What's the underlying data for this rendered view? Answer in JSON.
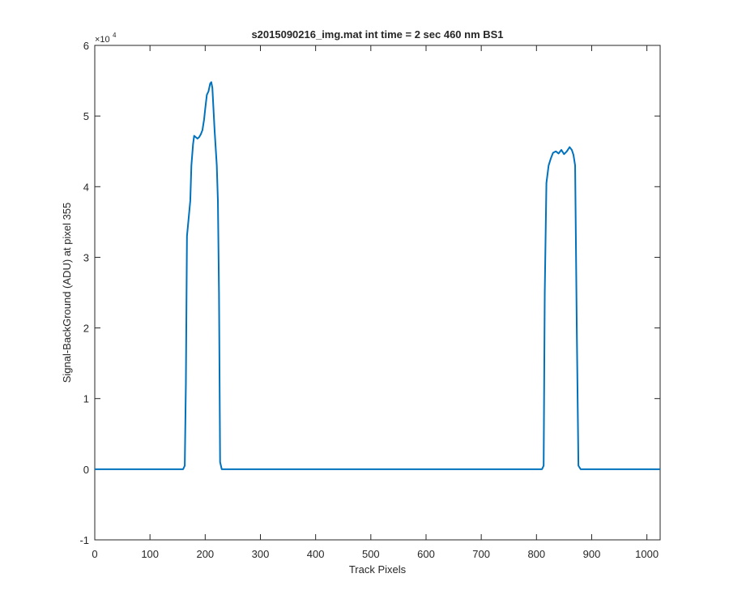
{
  "chart_data": {
    "type": "line",
    "title": "s2015090216_img.mat int time = 2 sec  460 nm BS1",
    "xlabel": "Track Pixels",
    "ylabel": "Signal-BackGround (ADU) at pixel 355",
    "y_exponent_label": "×10",
    "y_exponent": "4",
    "xlim": [
      0,
      1024
    ],
    "ylim": [
      -1,
      6
    ],
    "y_scale_factor": 10000,
    "x_ticks": [
      "0",
      "100",
      "200",
      "300",
      "400",
      "500",
      "600",
      "700",
      "800",
      "900",
      "1000"
    ],
    "x_tick_values": [
      0,
      100,
      200,
      300,
      400,
      500,
      600,
      700,
      800,
      900,
      1000
    ],
    "y_ticks": [
      "-1",
      "0",
      "1",
      "2",
      "3",
      "4",
      "5",
      "6"
    ],
    "y_tick_values": [
      -1,
      0,
      1,
      2,
      3,
      4,
      5,
      6
    ],
    "grid": false,
    "line_color": "#0072bd",
    "series": [
      {
        "x": [
          0,
          100,
          160,
          163,
          165,
          167,
          170,
          173,
          175,
          178,
          180,
          183,
          186,
          189,
          192,
          195,
          198,
          200,
          203,
          206,
          209,
          211,
          213,
          215,
          217,
          219,
          221,
          223,
          225,
          227,
          230,
          300,
          500,
          700,
          810,
          813,
          815,
          818,
          822,
          826,
          830,
          835,
          840,
          845,
          850,
          855,
          860,
          864,
          867,
          870,
          873,
          876,
          880,
          950,
          1024
        ],
        "y": [
          0,
          0,
          0,
          0.05,
          1.2,
          3.3,
          3.55,
          3.8,
          4.3,
          4.6,
          4.72,
          4.7,
          4.68,
          4.7,
          4.74,
          4.8,
          4.95,
          5.1,
          5.3,
          5.35,
          5.46,
          5.48,
          5.4,
          5.1,
          4.8,
          4.55,
          4.3,
          3.8,
          2.5,
          0.1,
          0,
          0,
          0,
          0,
          0,
          0.05,
          2.5,
          4.05,
          4.3,
          4.4,
          4.48,
          4.5,
          4.47,
          4.52,
          4.46,
          4.5,
          4.56,
          4.52,
          4.45,
          4.3,
          2.0,
          0.05,
          0,
          0,
          0
        ]
      }
    ]
  }
}
